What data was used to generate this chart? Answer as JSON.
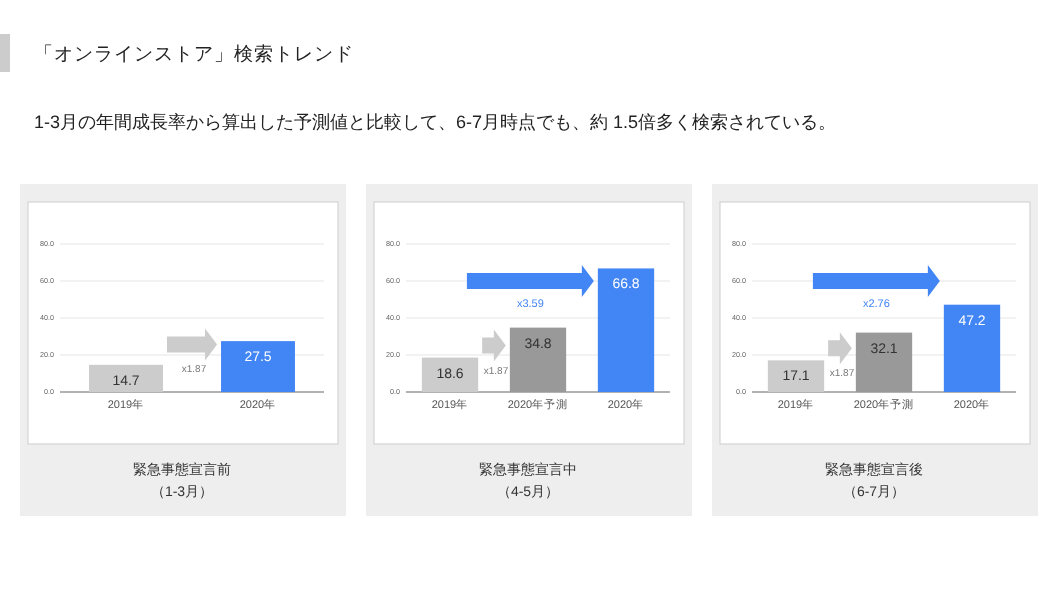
{
  "chart_data": [
    {
      "type": "bar",
      "title": "「オンラインストア」検索トレンド",
      "subtitle": "1-3月の年間成長率から算出した予測値と比較して、6-7月時点でも、約 1.5倍多く検索されている。",
      "xlabel": "緊急事態宣言前（1-3月）",
      "categories": [
        "2019年",
        "2020年"
      ],
      "values": [
        14.7,
        27.5
      ],
      "colors": [
        "#cccccc",
        "#4285f4"
      ],
      "ylim": [
        0,
        80
      ],
      "yticks": [
        {
          "value": 0,
          "label": "0.0"
        },
        {
          "value": 20,
          "label": "20.0"
        },
        {
          "value": 40,
          "label": "40.0"
        },
        {
          "value": 60,
          "label": "60.0"
        },
        {
          "value": 80,
          "label": "80.0"
        }
      ],
      "grid": "y",
      "data_labels": true,
      "annotations": [
        "x1.87"
      ]
    },
    {
      "type": "bar",
      "xlabel": "緊急事態宣言中（4-5月）",
      "categories": [
        "2019年",
        "2020年予測",
        "2020年"
      ],
      "values": [
        18.6,
        34.8,
        66.8
      ],
      "colors": [
        "#cccccc",
        "#999999",
        "#4285f4"
      ],
      "ylim": [
        0,
        80
      ],
      "yticks": [
        {
          "value": 0,
          "label": "0.0"
        },
        {
          "value": 20,
          "label": "20.0"
        },
        {
          "value": 40,
          "label": "40.0"
        },
        {
          "value": 60,
          "label": "60.0"
        },
        {
          "value": 80,
          "label": "80.0"
        }
      ],
      "grid": "y",
      "data_labels": true,
      "annotations": [
        "x1.87",
        "x3.59"
      ]
    },
    {
      "type": "bar",
      "xlabel": "緊急事態宣言後（6-7月）",
      "categories": [
        "2019年",
        "2020年予測",
        "2020年"
      ],
      "values": [
        17.1,
        32.1,
        47.2
      ],
      "colors": [
        "#cccccc",
        "#999999",
        "#4285f4"
      ],
      "ylim": [
        0,
        80
      ],
      "yticks": [
        {
          "value": 0,
          "label": "0.0"
        },
        {
          "value": 20,
          "label": "20.0"
        },
        {
          "value": 40,
          "label": "40.0"
        },
        {
          "value": 60,
          "label": "60.0"
        },
        {
          "value": 80,
          "label": "80.0"
        }
      ],
      "grid": "y",
      "data_labels": true,
      "annotations": [
        "x1.87",
        "x2.76"
      ]
    }
  ]
}
